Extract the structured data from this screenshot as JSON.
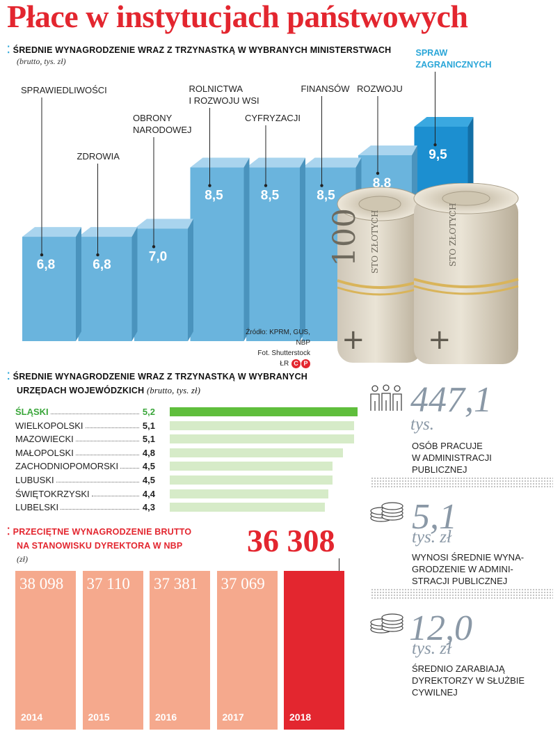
{
  "title": "Płace w instytucjach państwowych",
  "ministries": {
    "heading": "Średnie wynagrodzenie wraz z trzynastką w wybranych ministerstwach",
    "note": "(brutto, tys. zł)",
    "source_lines": [
      "Źródło: KPRM, GUS, NBP",
      "Fot. Shutterstock"
    ],
    "credit": "ŁR",
    "logo_letters": [
      "C",
      "P"
    ]
  },
  "voivodeship": {
    "heading_line1": "Średnie wynagrodzenie wraz z trzynastką w wybranych",
    "heading_line2": "urzędach wojewódzkich",
    "note": "(brutto, tys. zł)"
  },
  "nbp": {
    "heading_line1": "Przeciętne wynagrodzenie brutto",
    "heading_line2": "na stanowisku dyrektora w NBP",
    "note": "(zł)",
    "highlight_value": "36 308"
  },
  "stats": [
    {
      "value": "447,1",
      "unit": "tys.",
      "desc_lines": [
        "osób pracuje",
        "w administracji",
        "publicznej"
      ],
      "icon": "people-icon"
    },
    {
      "value": "5,1",
      "unit": "tys. zł",
      "desc_lines": [
        "wynosi średnie wyna-",
        "grodzenie w admini-",
        "stracji publicznej"
      ],
      "icon": "coins-icon"
    },
    {
      "value": "12,0",
      "unit": "tys. zł",
      "desc_lines": [
        "średnio zarabiają",
        "dyrektorzy w służbie",
        "cywilnej"
      ],
      "icon": "coins-icon"
    }
  ],
  "colors": {
    "accent_red": "#e3262f",
    "bar_blue": "#6ab4dd",
    "bar_blue_highlight": "#1c8fd0",
    "green": "#5fbe3c",
    "green_light": "#d6ebc8",
    "salmon": "#f5a98d",
    "stat_grey": "#8a98a6"
  },
  "chart_data": [
    {
      "type": "bar",
      "title": "Średnie wynagrodzenie wraz z trzynastką w wybranych ministerstwach",
      "ylabel": "(brutto, tys. zł)",
      "categories": [
        "SPRAWIEDLIWOŚCI",
        "ZDROWIA",
        "OBRONY NARODOWEJ",
        "ROLNICTWA I ROZWOJU WSI",
        "CYFRYZACJI",
        "FINANSÓW",
        "ROZWOJU",
        "SPRAW ZAGRANICZNYCH"
      ],
      "label_lines": [
        [
          "SPRAWIEDLIWOŚCI"
        ],
        [
          "ZDROWIA"
        ],
        [
          "OBRONY",
          "NARODOWEJ"
        ],
        [
          "ROLNICTWA",
          "I ROZWOJU WSI"
        ],
        [
          "CYFRYZACJI"
        ],
        [
          "FINANSÓW"
        ],
        [
          "ROZWOJU"
        ],
        [
          "SPRAW",
          "ZAGRANICZNYCH"
        ]
      ],
      "values": [
        6.8,
        6.8,
        7.0,
        8.5,
        8.5,
        8.5,
        8.8,
        9.5
      ],
      "value_labels": [
        "6,8",
        "6,8",
        "7,0",
        "8,5",
        "8,5",
        "8,5",
        "8,8",
        "9,5"
      ],
      "highlight_index": 7
    },
    {
      "type": "bar",
      "orientation": "horizontal",
      "title": "Średnie wynagrodzenie wraz z trzynastką w wybranych urzędach wojewódzkich",
      "categories": [
        "ŚLĄSKI",
        "WIELKOPOLSKI",
        "MAZOWIECKI",
        "MAŁOPOLSKI",
        "ZACHODNIOPOMORSKI",
        "LUBUSKI",
        "ŚWIĘTOKRZYSKI",
        "LUBELSKI"
      ],
      "values": [
        5.2,
        5.1,
        5.1,
        4.8,
        4.5,
        4.5,
        4.4,
        4.3
      ],
      "value_labels": [
        "5,2",
        "5,1",
        "5,1",
        "4,8",
        "4,5",
        "4,5",
        "4,4",
        "4,3"
      ],
      "highlight_index": 0
    },
    {
      "type": "bar",
      "title": "Przeciętne wynagrodzenie brutto na stanowisku dyrektora w NBP",
      "ylabel": "(zł)",
      "categories": [
        "2014",
        "2015",
        "2016",
        "2017",
        "2018"
      ],
      "values": [
        38098,
        37110,
        37381,
        37069,
        36308
      ],
      "value_labels": [
        "38 098",
        "37 110",
        "37 381",
        "37 069",
        ""
      ],
      "highlight_index": 4
    }
  ]
}
